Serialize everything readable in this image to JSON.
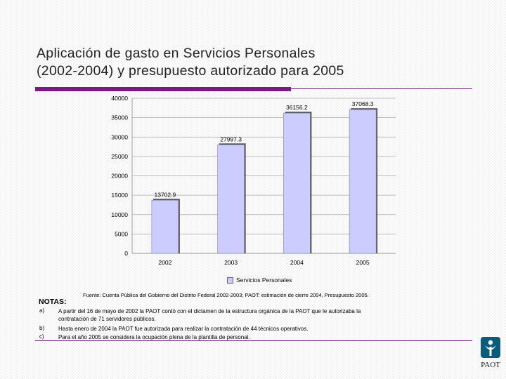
{
  "title_line1": "Aplicación de gasto en Servicios Personales",
  "title_line2": "(2002-2004) y presupuesto autorizado para 2005",
  "colors": {
    "accent": "#7a1a83",
    "bar_fill": "#ccccff",
    "logo": "#0b5c7a"
  },
  "chart_data": {
    "type": "bar",
    "categories": [
      "2002",
      "2003",
      "2004",
      "2005"
    ],
    "series": [
      {
        "name": "Servicios Personales",
        "values": [
          13702.9,
          27997.3,
          36156.2,
          37068.3
        ]
      }
    ],
    "data_labels": [
      "13702.9",
      "27997.3",
      "36156.2",
      "37068.3"
    ],
    "y_ticks": [
      0,
      5000,
      10000,
      15000,
      20000,
      25000,
      30000,
      35000,
      40000
    ],
    "ylim": [
      0,
      40000
    ],
    "grid": true,
    "legend": "bottom-center"
  },
  "legend_label": "Servicios Personales",
  "source": "Fuente: Cuenta Pública del Gobierno del Distrito Federal 2002-2003; PAOT: estimación de cierre 2004, Presupuesto 2005.",
  "notes_title": "NOTAS:",
  "notes": [
    {
      "letter": "a)",
      "line1": "A partir del 16 de mayo de 2002 la PAOT contó con el dictamen de la estructura orgánica de la PAOT que le autorizaba la",
      "line2": "contratación de 71 servidores públicos."
    },
    {
      "letter": "b)",
      "line1": "Hasta enero de 2004 la PAOT fue autorizada para realizar la contratación de 44 técnicos operativos.",
      "line2": ""
    },
    {
      "letter": "c)",
      "line1": "Para el año 2005 se considera la ocupación plena de la plantilla de personal.",
      "line2": ""
    }
  ],
  "logo": {
    "text": "PAOT",
    "icon": "paot-logo-icon"
  }
}
